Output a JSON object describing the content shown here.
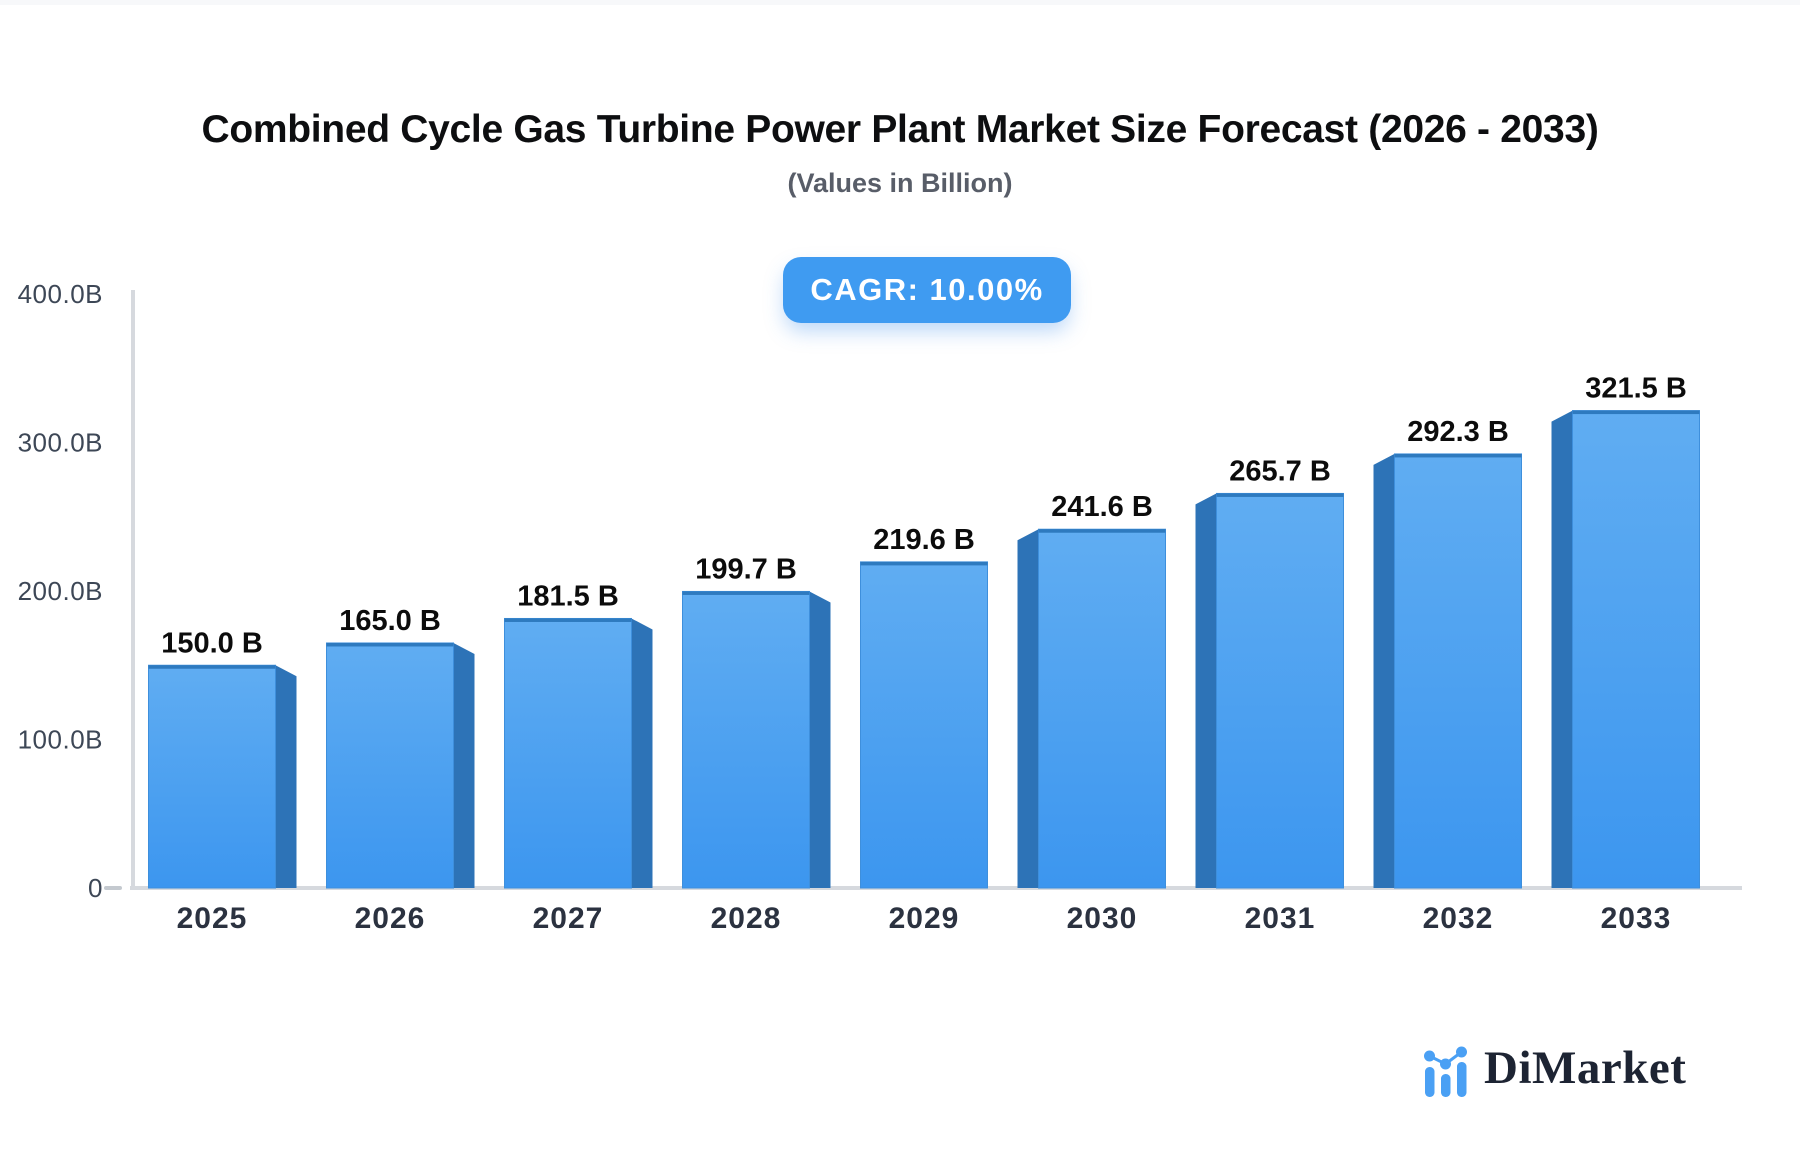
{
  "header": {
    "title": "Combined Cycle Gas Turbine Power Plant Market Size Forecast (2026 - 2033)",
    "subtitle": "(Values in Billion)",
    "cagr_badge": "CAGR: 10.00%"
  },
  "chart_data": {
    "type": "bar",
    "title": "Combined Cycle Gas Turbine Power Plant Market Size Forecast (2026 - 2033)",
    "subtitle": "(Values in Billion)",
    "unit": "Billion",
    "cagr_percent": 10.0,
    "categories": [
      "2025",
      "2026",
      "2027",
      "2028",
      "2029",
      "2030",
      "2031",
      "2032",
      "2033"
    ],
    "values": [
      150.0,
      165.0,
      181.5,
      199.7,
      219.6,
      241.6,
      265.7,
      292.3,
      321.5
    ],
    "value_labels": [
      "150.0 B",
      "165.0 B",
      "181.5 B",
      "199.7 B",
      "219.6 B",
      "241.6 B",
      "265.7 B",
      "292.3 B",
      "321.5 B"
    ],
    "y_axis": {
      "range": [
        0,
        400
      ],
      "ticks": [
        {
          "value": 400,
          "label": "400.0B"
        },
        {
          "value": 300,
          "label": "300.0B"
        },
        {
          "value": 200,
          "label": "200.0B"
        },
        {
          "value": 100,
          "label": "100.0B"
        },
        {
          "value": 0,
          "label": "0"
        }
      ]
    },
    "grid": false,
    "legend": "none",
    "bar_style": "pseudo-3d, side shadow faces outward from center, middle bar flat"
  },
  "branding": {
    "name": "DiMarket"
  },
  "colors": {
    "background": "#FFFFFF",
    "top_strip": "#F7F8FA",
    "title": "#0D0E10",
    "subtitle": "#585D68",
    "badge_bg": "#3F9BF1",
    "badge_text": "#FFFFFF",
    "bar_face_top": "#60ADF2",
    "bar_face_bottom": "#3C96EF",
    "bar_side": "#2D73B7",
    "bar_top_edge": "#2E7ABF",
    "bar_outline": "#3E8FDC",
    "axis": "#D6D9DE",
    "tick_dash": "#C4C9CF",
    "y_label": "#3D4756",
    "x_label": "#2B3240",
    "value_label": "#0C0C0C",
    "logo_text": "#1D2433",
    "logo_icon": "#4AA0F4"
  }
}
